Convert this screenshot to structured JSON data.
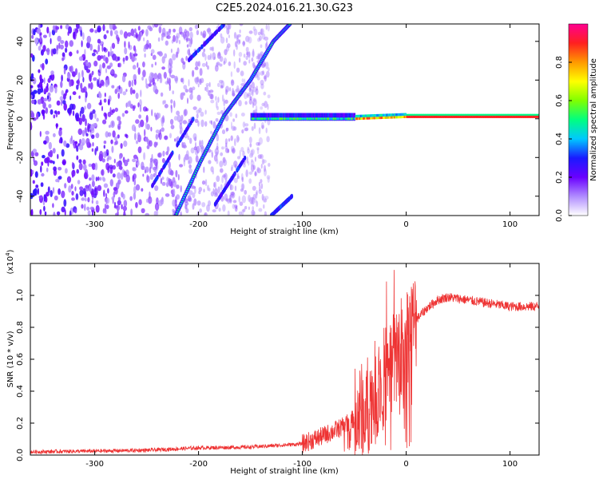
{
  "figure": {
    "title": "C2E5.2024.016.21.30.G23"
  },
  "chart_data": [
    {
      "type": "heatmap",
      "xlabel": "Height of straight line (km)",
      "ylabel": "Frequency (Hz)",
      "xlim": [
        -362,
        128
      ],
      "ylim": [
        -50,
        49
      ],
      "x_ticks": [
        -300,
        -200,
        -100,
        0,
        100
      ],
      "y_ticks": [
        -40,
        -20,
        0,
        20,
        40
      ],
      "colorbar": {
        "label": "Normalized spectral amplitude",
        "range": [
          0,
          1
        ],
        "ticks": [
          0.0,
          0.2,
          0.4,
          0.6,
          0.8
        ],
        "colors": [
          "#ffffff",
          "#b08cff",
          "#6a00ff",
          "#1a1aff",
          "#00c8ff",
          "#00ff80",
          "#80ff00",
          "#ffff00",
          "#ff9900",
          "#ff2020",
          "#ff0090"
        ]
      },
      "features": {
        "main_doppler_line": {
          "x": [
            -222,
            -198,
            -175,
            -150,
            -128,
            -112
          ],
          "y": [
            -50,
            -22,
            2,
            20,
            40,
            49
          ],
          "amplitude": 0.4
        },
        "carrier_line": {
          "x": [
            -150,
            -100,
            -50,
            0,
            50,
            100,
            128
          ],
          "y": [
            0,
            0,
            0,
            1,
            1,
            1,
            1
          ],
          "amplitude": 0.9
        },
        "secondary_lines": [
          {
            "x": [
              -175,
              -210
            ],
            "y": [
              49,
              30
            ]
          },
          {
            "x": [
              -205,
              -245
            ],
            "y": [
              0,
              -35
            ]
          },
          {
            "x": [
              -155,
              -185
            ],
            "y": [
              -20,
              -45
            ]
          },
          {
            "x": [
              -110,
              -130
            ],
            "y": [
              -40,
              -50
            ]
          }
        ]
      }
    },
    {
      "type": "line",
      "xlabel": "Height of straight line (km)",
      "ylabel": "SNR (10 * v/v)",
      "y_multiplier": "(x10^4)",
      "xlim": [
        -362,
        128
      ],
      "ylim": [
        0,
        1.2
      ],
      "x_ticks": [
        -300,
        -200,
        -100,
        0,
        100
      ],
      "y_ticks": [
        0.0,
        0.2,
        0.4,
        0.6,
        0.8,
        1.0
      ],
      "series": [
        {
          "color": "#ee3333",
          "x": [
            -362,
            -300,
            -250,
            -200,
            -150,
            -100,
            -80,
            -60,
            -40,
            -30,
            -20,
            -10,
            0,
            10,
            20,
            30,
            40,
            60,
            80,
            100,
            128
          ],
          "y": [
            0.02,
            0.025,
            0.03,
            0.045,
            0.05,
            0.07,
            0.12,
            0.18,
            0.28,
            0.4,
            0.5,
            0.6,
            0.75,
            0.85,
            0.92,
            0.97,
            0.99,
            0.97,
            0.95,
            0.93,
            0.93
          ]
        }
      ]
    }
  ]
}
